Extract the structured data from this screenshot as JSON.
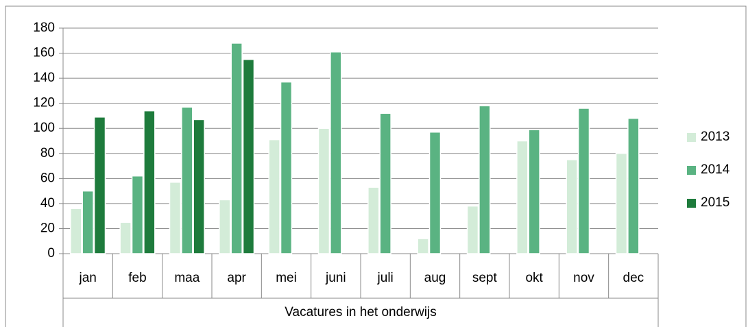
{
  "chart_data": {
    "type": "bar",
    "categories": [
      "jan",
      "feb",
      "maa",
      "apr",
      "mei",
      "juni",
      "juli",
      "aug",
      "sept",
      "okt",
      "nov",
      "dec"
    ],
    "x_group_label": "Vacatures in het onderwijs",
    "series": [
      {
        "name": "2013",
        "color": "#d3ecd8",
        "values": [
          36,
          25,
          57,
          43,
          91,
          100,
          53,
          12,
          38,
          90,
          75,
          80
        ]
      },
      {
        "name": "2014",
        "color": "#5ab382",
        "values": [
          50,
          62,
          117,
          168,
          137,
          161,
          112,
          97,
          118,
          99,
          116,
          108
        ]
      },
      {
        "name": "2015",
        "color": "#1e7b3c",
        "values": [
          109,
          114,
          107,
          155,
          null,
          null,
          null,
          null,
          null,
          null,
          null,
          null
        ]
      }
    ],
    "ylim": [
      0,
      180
    ],
    "yticks": [
      0,
      20,
      40,
      60,
      80,
      100,
      120,
      140,
      160,
      180
    ],
    "grid": true,
    "legend": "right"
  }
}
